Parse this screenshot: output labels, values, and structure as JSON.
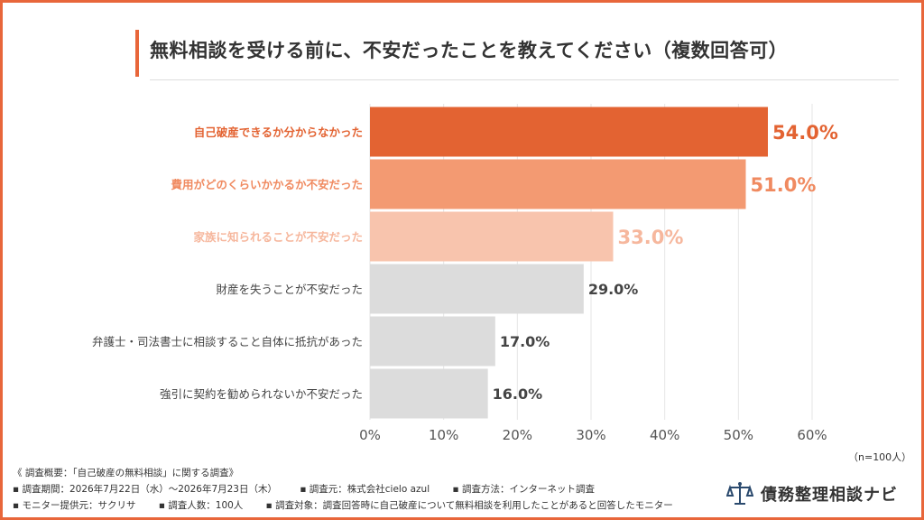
{
  "title": "無料相談を受ける前に、不安だったことを教えてください（複数回答可）",
  "n_note": "（n=100人）",
  "footer": {
    "line1": "《 調査概要：「自己破産の無料相談」に関する調査》",
    "line2": [
      "▪ 調査期間：2026年7月22日（水）〜2026年7月23日（木）",
      "▪ 調査元：株式会社cielo azul",
      "▪ 調査方法：インターネット調査"
    ],
    "line3": [
      "▪ モニター提供元：サクリサ",
      "▪ 調査人数：100人",
      "▪ 調査対象：調査回答時に自己破産について無料相談を利用したことがあると回答したモニター"
    ]
  },
  "brand": {
    "name": "債務整理相談ナビ",
    "icon": "scales-of-justice-icon",
    "color": "#2b4a6e"
  },
  "chart_data": {
    "type": "bar",
    "orientation": "horizontal",
    "categories": [
      "自己破産できるか分からなかった",
      "費用がどのくらいかかるか不安だった",
      "家族に知られることが不安だった",
      "財産を失うことが不安だった",
      "弁護士・司法書士に相談すること自体に抵抗があった",
      "強引に契約を勧められないか不安だった"
    ],
    "values": [
      54.0,
      51.0,
      33.0,
      29.0,
      17.0,
      16.0
    ],
    "value_labels": [
      "54.0%",
      "51.0%",
      "33.0%",
      "29.0%",
      "17.0%",
      "16.0%"
    ],
    "bar_colors": [
      "#e36332",
      "#f39a72",
      "#f8c4ad",
      "#dcdcdc",
      "#dcdcdc",
      "#dcdcdc"
    ],
    "label_colors": [
      "#e36332",
      "#f08a60",
      "#f6b79d",
      "#444444",
      "#444444",
      "#444444"
    ],
    "xticks": [
      "0%",
      "10%",
      "20%",
      "30%",
      "40%",
      "50%",
      "60%"
    ],
    "xlim": [
      0,
      60
    ],
    "grid": true
  }
}
